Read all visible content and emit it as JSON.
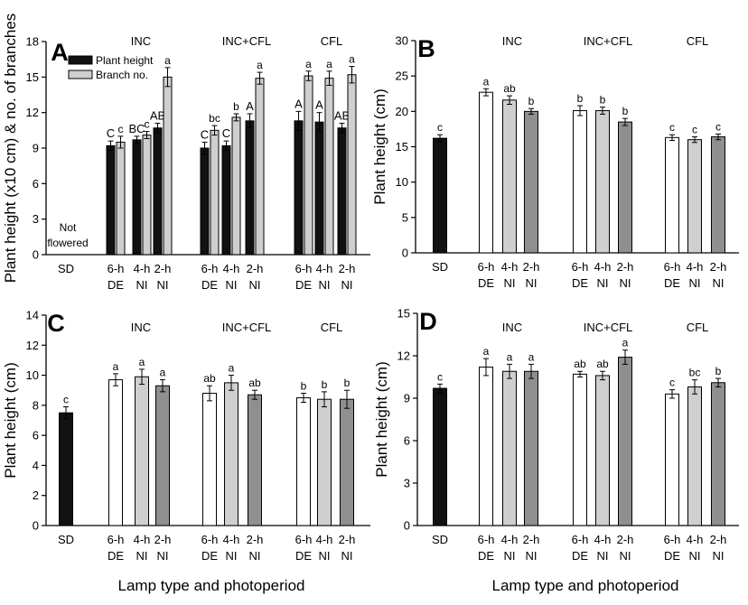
{
  "common": {
    "xlabel": "Lamp type and photoperiod",
    "category_lines": [
      [
        "SD",
        ""
      ],
      [
        "6-h",
        "DE"
      ],
      [
        "4-h",
        "NI"
      ],
      [
        "2-h",
        "NI"
      ],
      [
        "6-h",
        "DE"
      ],
      [
        "4-h",
        "NI"
      ],
      [
        "2-h",
        "NI"
      ],
      [
        "6-h",
        "DE"
      ],
      [
        "4-h",
        "NI"
      ],
      [
        "2-h",
        "NI"
      ]
    ],
    "groups": [
      "INC",
      "INC+CFL",
      "CFL"
    ],
    "colors": {
      "black": "#111111",
      "white": "#ffffff",
      "light": "#cfcfcf",
      "mid": "#8f8f8f"
    }
  },
  "chart_data": [
    {
      "panel": "A",
      "type": "bar",
      "ylabel": "Plant height (x10 cm) & no. of branches",
      "ylim": [
        0,
        18
      ],
      "yticks": [
        0,
        3,
        6,
        9,
        12,
        15,
        18
      ],
      "categories": [
        "SD",
        "INC 6-h DE",
        "INC 4-h NI",
        "INC 2-h NI",
        "INC+CFL 6-h DE",
        "INC+CFL 4-h NI",
        "INC+CFL 2-h NI",
        "CFL 6-h DE",
        "CFL 4-h NI",
        "CFL 2-h NI"
      ],
      "legend": [
        "Plant height",
        "Branch no."
      ],
      "not_flowered_label": [
        "Not",
        "flowered"
      ],
      "series": [
        {
          "name": "Plant height",
          "values": [
            null,
            9.2,
            9.7,
            10.7,
            9.0,
            9.2,
            11.3,
            11.3,
            11.2,
            10.7
          ],
          "errors": [
            null,
            0.4,
            0.3,
            0.4,
            0.5,
            0.4,
            0.6,
            0.8,
            0.8,
            0.4
          ],
          "labels": [
            null,
            "C",
            "BC",
            "AB",
            "C",
            "C",
            "A",
            "A",
            "A",
            "AB"
          ]
        },
        {
          "name": "Branch no.",
          "values": [
            null,
            9.5,
            10.1,
            15.0,
            10.5,
            11.6,
            14.9,
            15.1,
            14.9,
            15.2
          ],
          "errors": [
            null,
            0.5,
            0.3,
            0.8,
            0.4,
            0.3,
            0.5,
            0.4,
            0.6,
            0.7
          ],
          "labels": [
            null,
            "c",
            "c",
            "a",
            "bc",
            "b",
            "a",
            "a",
            "a",
            "a"
          ]
        }
      ]
    },
    {
      "panel": "B",
      "type": "bar",
      "ylabel": "Plant height (cm)",
      "ylim": [
        0,
        30
      ],
      "yticks": [
        0,
        5,
        10,
        15,
        20,
        25,
        30
      ],
      "categories": [
        "SD",
        "INC 6-h DE",
        "INC 4-h NI",
        "INC 2-h NI",
        "INC+CFL 6-h DE",
        "INC+CFL 4-h NI",
        "INC+CFL 2-h NI",
        "CFL 6-h DE",
        "CFL 4-h NI",
        "CFL 2-h NI"
      ],
      "values": [
        16.2,
        22.7,
        21.6,
        20.0,
        20.1,
        20.1,
        18.5,
        16.3,
        16.0,
        16.4
      ],
      "errors": [
        0.5,
        0.5,
        0.6,
        0.4,
        0.7,
        0.5,
        0.5,
        0.4,
        0.4,
        0.4
      ],
      "labels": [
        "c",
        "a",
        "ab",
        "b",
        "b",
        "b",
        "b",
        "c",
        "c",
        "c"
      ]
    },
    {
      "panel": "C",
      "type": "bar",
      "ylabel": "Plant height (cm)",
      "ylim": [
        0,
        14
      ],
      "yticks": [
        0,
        2,
        4,
        6,
        8,
        10,
        12,
        14
      ],
      "categories": [
        "SD",
        "INC 6-h DE",
        "INC 4-h NI",
        "INC 2-h NI",
        "INC+CFL 6-h DE",
        "INC+CFL 4-h NI",
        "INC+CFL 2-h NI",
        "CFL 6-h DE",
        "CFL 4-h NI",
        "CFL 2-h NI"
      ],
      "values": [
        7.5,
        9.7,
        9.9,
        9.3,
        8.8,
        9.5,
        8.7,
        8.5,
        8.4,
        8.4
      ],
      "errors": [
        0.4,
        0.4,
        0.5,
        0.4,
        0.5,
        0.5,
        0.3,
        0.3,
        0.5,
        0.6
      ],
      "labels": [
        "c",
        "a",
        "a",
        "a",
        "ab",
        "a",
        "ab",
        "b",
        "b",
        "b"
      ]
    },
    {
      "panel": "D",
      "type": "bar",
      "ylabel": "Plant height (cm)",
      "ylim": [
        0,
        15
      ],
      "yticks": [
        0,
        3,
        6,
        9,
        12,
        15
      ],
      "categories": [
        "SD",
        "INC 6-h DE",
        "INC 4-h NI",
        "INC 2-h NI",
        "INC+CFL 6-h DE",
        "INC+CFL 4-h NI",
        "INC+CFL 2-h NI",
        "CFL 6-h DE",
        "CFL 4-h NI",
        "CFL 2-h NI"
      ],
      "values": [
        9.7,
        11.2,
        10.9,
        10.9,
        10.7,
        10.6,
        11.9,
        9.3,
        9.8,
        10.1
      ],
      "errors": [
        0.3,
        0.6,
        0.5,
        0.5,
        0.2,
        0.3,
        0.5,
        0.3,
        0.5,
        0.3
      ],
      "labels": [
        "c",
        "a",
        "a",
        "a",
        "ab",
        "ab",
        "a",
        "c",
        "bc",
        "b"
      ]
    }
  ]
}
